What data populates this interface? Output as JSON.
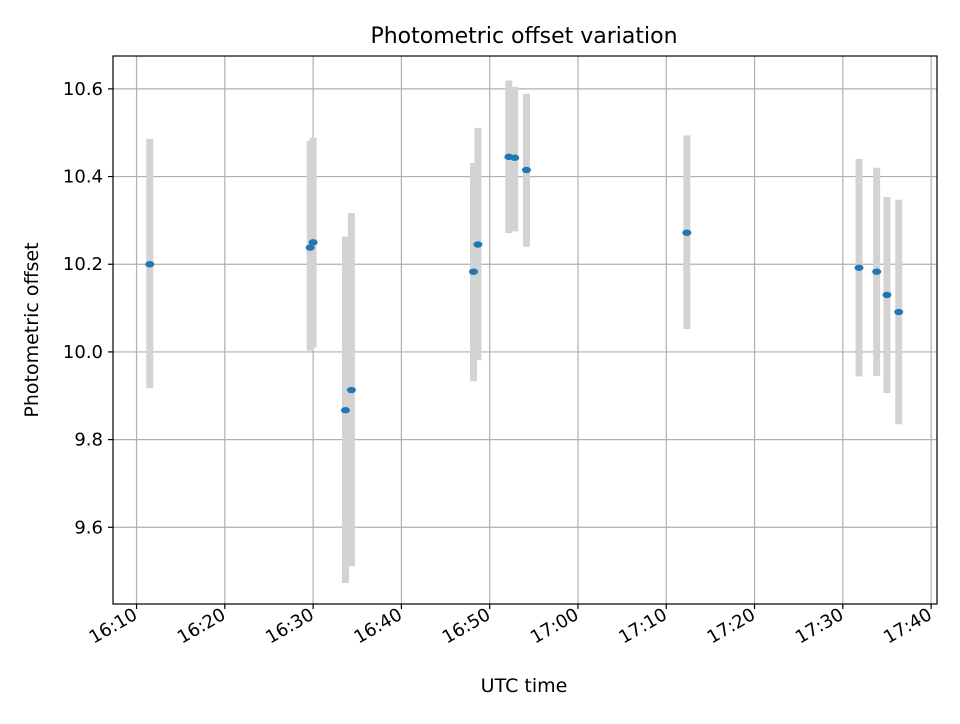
{
  "chart_data": {
    "type": "scatter",
    "title": "Photometric offset variation",
    "xlabel": "UTC time",
    "ylabel": "Photometric offset",
    "x_range": [
      "16:07:20",
      "17:40:40"
    ],
    "ylim": [
      9.425,
      10.675
    ],
    "x_ticks": [
      "16:10",
      "16:20",
      "16:30",
      "16:40",
      "16:50",
      "17:00",
      "17:10",
      "17:20",
      "17:30",
      "17:40"
    ],
    "y_ticks": [
      9.6,
      9.8,
      10.0,
      10.2,
      10.4,
      10.6
    ],
    "y_tick_labels": [
      "9.6",
      "9.8",
      "10.0",
      "10.2",
      "10.4",
      "10.6"
    ],
    "grid": true,
    "legend": false,
    "colors": {
      "points": "#1f77b4",
      "error_bars": "#d3d3d3",
      "grid": "#b0b0b0"
    },
    "points": [
      {
        "x": "16:11:30",
        "y": 10.2,
        "ylow": 9.917,
        "yhigh": 10.486
      },
      {
        "x": "16:29:40",
        "y": 10.238,
        "ylow": 10.003,
        "yhigh": 10.481
      },
      {
        "x": "16:30:00",
        "y": 10.25,
        "ylow": 10.01,
        "yhigh": 10.488
      },
      {
        "x": "16:33:40",
        "y": 9.867,
        "ylow": 9.473,
        "yhigh": 10.263
      },
      {
        "x": "16:34:20",
        "y": 9.913,
        "ylow": 9.511,
        "yhigh": 10.317
      },
      {
        "x": "16:48:10",
        "y": 10.183,
        "ylow": 9.933,
        "yhigh": 10.431
      },
      {
        "x": "16:48:40",
        "y": 10.245,
        "ylow": 9.981,
        "yhigh": 10.511
      },
      {
        "x": "16:52:10",
        "y": 10.445,
        "ylow": 10.271,
        "yhigh": 10.619
      },
      {
        "x": "16:52:50",
        "y": 10.443,
        "ylow": 10.275,
        "yhigh": 10.605
      },
      {
        "x": "16:54:10",
        "y": 10.415,
        "ylow": 10.24,
        "yhigh": 10.589
      },
      {
        "x": "17:12:20",
        "y": 10.272,
        "ylow": 10.052,
        "yhigh": 10.494
      },
      {
        "x": "17:31:50",
        "y": 10.192,
        "ylow": 9.944,
        "yhigh": 10.44
      },
      {
        "x": "17:33:50",
        "y": 10.183,
        "ylow": 9.945,
        "yhigh": 10.42
      },
      {
        "x": "17:35:00",
        "y": 10.13,
        "ylow": 9.906,
        "yhigh": 10.353
      },
      {
        "x": "17:36:20",
        "y": 10.091,
        "ylow": 9.835,
        "yhigh": 10.347
      }
    ]
  }
}
